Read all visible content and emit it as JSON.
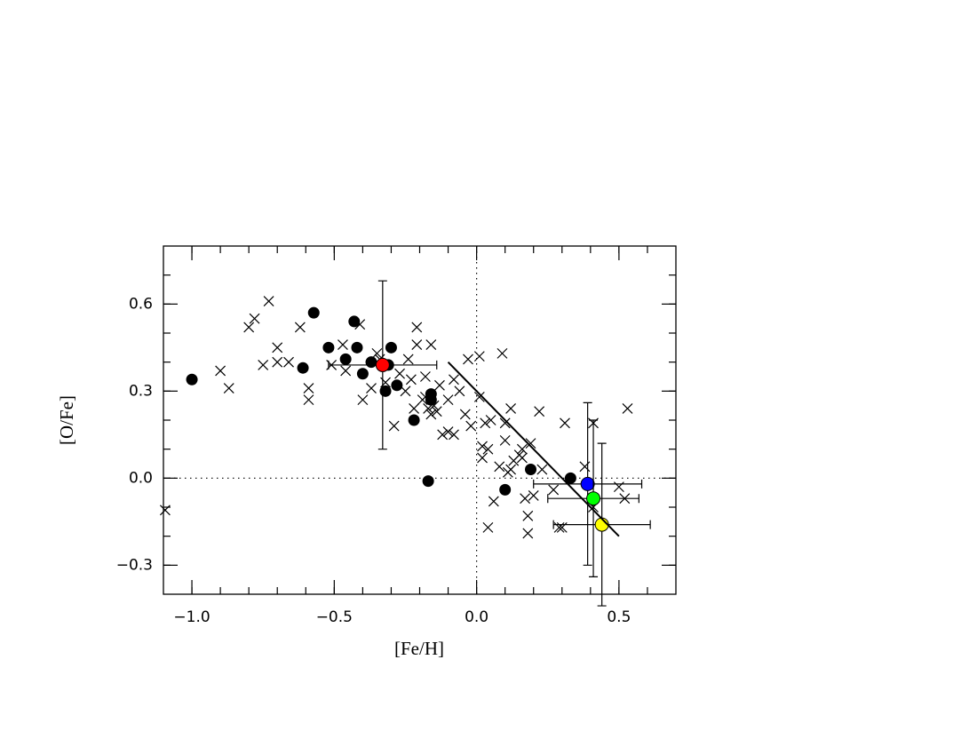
{
  "chart_data": {
    "type": "scatter",
    "x_label": "[Fe/H]",
    "y_label": "[O/Fe]",
    "xlim": [
      -1.1,
      0.7
    ],
    "ylim": [
      -0.4,
      0.8
    ],
    "xticks": [
      {
        "value": -1.0,
        "label": "−1.0"
      },
      {
        "value": -0.5,
        "label": "−0.5"
      },
      {
        "value": 0,
        "label": "0.0"
      },
      {
        "value": 0.5,
        "label": "0.5"
      }
    ],
    "yticks": [
      {
        "value": -0.3,
        "label": "−0.3"
      },
      {
        "value": 0,
        "label": "0.0"
      },
      {
        "value": 0.3,
        "label": "0.3"
      },
      {
        "value": 0.6,
        "label": "0.6"
      }
    ],
    "xminorticks": [
      -1.0,
      -0.9,
      -0.8,
      -0.7,
      -0.6,
      -0.5,
      -0.4,
      -0.3,
      -0.2,
      -0.1,
      0,
      0.1,
      0.2,
      0.3,
      0.4,
      0.5,
      0.6
    ],
    "yminorticks": [
      -0.3,
      -0.2,
      -0.1,
      0,
      0.1,
      0.2,
      0.3,
      0.4,
      0.5,
      0.6,
      0.7
    ],
    "reference_lines": [
      {
        "axis": "x",
        "value": 0
      },
      {
        "axis": "y",
        "value": 0
      }
    ],
    "series": [
      {
        "marker": "x",
        "color": "#000000",
        "x": [
          -1.094,
          -0.9,
          -0.87,
          -0.8,
          -0.78,
          -0.73,
          -0.7,
          -0.75,
          -0.7,
          -0.66,
          -0.62,
          -0.59,
          -0.59,
          -0.51,
          -0.47,
          -0.46,
          -0.41,
          -0.4,
          -0.37,
          -0.35,
          -0.34,
          -0.32,
          -0.29,
          -0.27,
          -0.25,
          -0.24,
          -0.23,
          -0.21,
          -0.21,
          -0.22,
          -0.19,
          -0.18,
          -0.17,
          -0.16,
          -0.16,
          -0.15,
          -0.13,
          -0.14,
          -0.12,
          -0.1,
          -0.1,
          -0.08,
          -0.08,
          -0.06,
          -0.04,
          -0.03,
          -0.02,
          0.01,
          0.01,
          0.02,
          0.03,
          0.02,
          0.04,
          0.05,
          0.04,
          0.06,
          0.08,
          0.09,
          0.1,
          0.1,
          0.11,
          0.12,
          0.12,
          0.13,
          0.15,
          0.16,
          0.16,
          0.17,
          0.18,
          0.18,
          0.19,
          0.2,
          0.22,
          0.23,
          0.27,
          0.29,
          0.3,
          0.31,
          0.38,
          0.41,
          0.41,
          0.5,
          0.52,
          0.53,
          -0.18
        ],
        "y": [
          -0.11,
          0.37,
          0.31,
          0.52,
          0.55,
          0.61,
          0.45,
          0.39,
          0.4,
          0.4,
          0.52,
          0.31,
          0.27,
          0.39,
          0.46,
          0.37,
          0.53,
          0.27,
          0.31,
          0.43,
          0.41,
          0.33,
          0.18,
          0.36,
          0.3,
          0.41,
          0.34,
          0.52,
          0.46,
          0.24,
          0.27,
          0.35,
          0.24,
          0.46,
          0.22,
          0.25,
          0.32,
          0.23,
          0.15,
          0.16,
          0.27,
          0.15,
          0.34,
          0.3,
          0.22,
          0.41,
          0.18,
          0.42,
          0.28,
          0.07,
          0.19,
          0.11,
          0.1,
          0.2,
          -0.17,
          -0.08,
          0.04,
          0.43,
          0.19,
          0.13,
          0.02,
          0.24,
          0.03,
          0.06,
          0.08,
          0.07,
          0.1,
          -0.07,
          -0.19,
          -0.13,
          0.12,
          -0.06,
          0.23,
          0.03,
          -0.04,
          -0.17,
          -0.17,
          0.19,
          0.04,
          0.19,
          -0.1,
          -0.03,
          -0.07,
          0.24,
          0.28
        ]
      },
      {
        "marker": "o",
        "color": "#000000",
        "x": [
          -1.0,
          -0.572,
          -0.61,
          -0.52,
          -0.43,
          -0.42,
          -0.46,
          -0.37,
          -0.4,
          -0.3,
          -0.31,
          -0.32,
          -0.28,
          -0.16,
          -0.16,
          -0.22,
          -0.17,
          0.19,
          0.1,
          0.33
        ],
        "y": [
          0.34,
          0.57,
          0.38,
          0.45,
          0.54,
          0.45,
          0.41,
          0.4,
          0.36,
          0.45,
          0.39,
          0.3,
          0.32,
          0.29,
          0.27,
          0.2,
          -0.01,
          0.03,
          -0.04,
          0.0
        ]
      },
      {
        "marker": "o",
        "color": "#ff0000",
        "x": [
          -0.33
        ],
        "y": [
          0.39
        ],
        "xerr": [
          0.19
        ],
        "yerr": [
          0.29
        ]
      },
      {
        "marker": "o",
        "color": "#0000ff",
        "x": [
          0.39
        ],
        "y": [
          -0.02
        ],
        "xerr": [
          0.19
        ],
        "yerr": [
          0.28
        ]
      },
      {
        "marker": "o",
        "color": "#00ff00",
        "x": [
          0.41
        ],
        "y": [
          -0.07
        ],
        "xerr": [
          0.16
        ],
        "yerr": [
          0.27
        ]
      },
      {
        "marker": "o",
        "color": "#ffff00",
        "x": [
          0.44
        ],
        "y": [
          -0.16
        ],
        "xerr": [
          0.17
        ],
        "yerr": [
          0.28
        ]
      },
      {
        "marker": "line",
        "color": "#000000",
        "x": [
          -0.1,
          0.5
        ],
        "y": [
          0.4,
          -0.2
        ]
      }
    ]
  }
}
